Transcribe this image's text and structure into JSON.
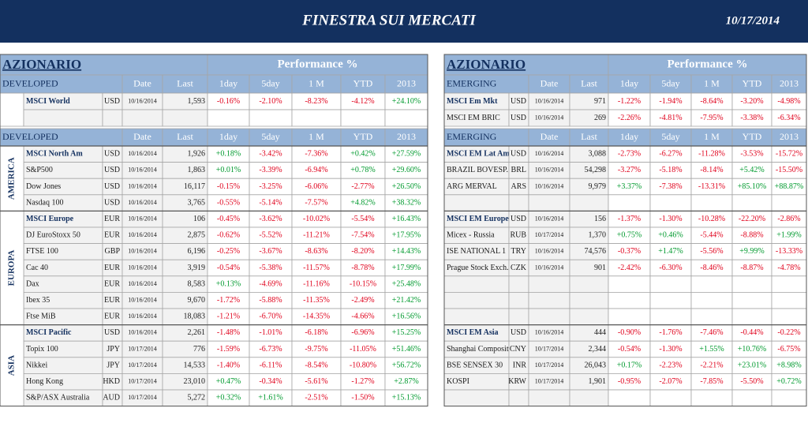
{
  "header": {
    "title": "FINESTRA SUI MERCATI",
    "date": "10/17/2014"
  },
  "left": {
    "title": "AZIONARIO",
    "perf": "Performance %",
    "top_header": [
      "DEVELOPED",
      "Date",
      "Last",
      "1day",
      "5day",
      "1 M",
      "YTD",
      "2013"
    ],
    "top_rows": [
      [
        "MSCI World",
        "USD",
        "10/16/2014",
        "1,593",
        "-0.16%",
        "-2.10%",
        "-8.23%",
        "-4.12%",
        "+24.10%"
      ]
    ],
    "section_header": [
      "DEVELOPED",
      "Date",
      "Last",
      "1day",
      "5day",
      "1 M",
      "YTD",
      "2013"
    ],
    "groups": [
      {
        "name": "AMERICA",
        "rows": [
          [
            "MSCI North Am",
            "USD",
            "10/16/2014",
            "1,926",
            "+0.18%",
            "-3.42%",
            "-7.36%",
            "+0.42%",
            "+27.59%"
          ],
          [
            "S&P500",
            "USD",
            "10/16/2014",
            "1,863",
            "+0.01%",
            "-3.39%",
            "-6.94%",
            "+0.78%",
            "+29.60%"
          ],
          [
            "Dow Jones",
            "USD",
            "10/16/2014",
            "16,117",
            "-0.15%",
            "-3.25%",
            "-6.06%",
            "-2.77%",
            "+26.50%"
          ],
          [
            "Nasdaq 100",
            "USD",
            "10/16/2014",
            "3,765",
            "-0.55%",
            "-5.14%",
            "-7.57%",
            "+4.82%",
            "+38.32%"
          ]
        ]
      },
      {
        "name": "EUROPA",
        "rows": [
          [
            "MSCI Europe",
            "EUR",
            "10/16/2014",
            "106",
            "-0.45%",
            "-3.62%",
            "-10.02%",
            "-5.54%",
            "+16.43%"
          ],
          [
            "DJ EuroStoxx 50",
            "EUR",
            "10/16/2014",
            "2,875",
            "-0.62%",
            "-5.52%",
            "-11.21%",
            "-7.54%",
            "+17.95%"
          ],
          [
            "FTSE 100",
            "GBP",
            "10/16/2014",
            "6,196",
            "-0.25%",
            "-3.67%",
            "-8.63%",
            "-8.20%",
            "+14.43%"
          ],
          [
            "Cac 40",
            "EUR",
            "10/16/2014",
            "3,919",
            "-0.54%",
            "-5.38%",
            "-11.57%",
            "-8.78%",
            "+17.99%"
          ],
          [
            "Dax",
            "EUR",
            "10/16/2014",
            "8,583",
            "+0.13%",
            "-4.69%",
            "-11.16%",
            "-10.15%",
            "+25.48%"
          ],
          [
            "Ibex 35",
            "EUR",
            "10/16/2014",
            "9,670",
            "-1.72%",
            "-5.88%",
            "-11.35%",
            "-2.49%",
            "+21.42%"
          ],
          [
            "Ftse MiB",
            "EUR",
            "10/16/2014",
            "18,083",
            "-1.21%",
            "-6.70%",
            "-14.35%",
            "-4.66%",
            "+16.56%"
          ]
        ]
      },
      {
        "name": "ASIA",
        "rows": [
          [
            "MSCI Pacific",
            "USD",
            "10/16/2014",
            "2,261",
            "-1.48%",
            "-1.01%",
            "-6.18%",
            "-6.96%",
            "+15.25%"
          ],
          [
            "Topix 100",
            "JPY",
            "10/17/2014",
            "776",
            "-1.59%",
            "-6.73%",
            "-9.75%",
            "-11.05%",
            "+51.46%"
          ],
          [
            "Nikkei",
            "JPY",
            "10/17/2014",
            "14,533",
            "-1.40%",
            "-6.11%",
            "-8.54%",
            "-10.80%",
            "+56.72%"
          ],
          [
            "Hong Kong",
            "HKD",
            "10/17/2014",
            "23,010",
            "+0.47%",
            "-0.34%",
            "-5.61%",
            "-1.27%",
            "+2.87%"
          ],
          [
            "S&P/ASX Australia",
            "AUD",
            "10/17/2014",
            "5,272",
            "+0.32%",
            "+1.61%",
            "-2.51%",
            "-1.50%",
            "+15.13%"
          ]
        ]
      }
    ]
  },
  "right": {
    "title": "AZIONARIO",
    "perf": "Performance %",
    "top_header": [
      "EMERGING",
      "Date",
      "Last",
      "1day",
      "5day",
      "1 M",
      "YTD",
      "2013"
    ],
    "top_rows": [
      [
        "MSCI Em Mkt",
        "USD",
        "10/16/2014",
        "971",
        "-1.22%",
        "-1.94%",
        "-8.64%",
        "-3.20%",
        "-4.98%"
      ],
      [
        "MSCI EM BRIC",
        "USD",
        "10/16/2014",
        "269",
        "-2.26%",
        "-4.81%",
        "-7.95%",
        "-3.38%",
        "-6.34%"
      ]
    ],
    "section_header": [
      "EMERGING",
      "Date",
      "Last",
      "1day",
      "5day",
      "1 M",
      "YTD",
      "2013"
    ],
    "groups": [
      {
        "rows": [
          [
            "MSCI EM Lat Am",
            "USD",
            "10/16/2014",
            "3,088",
            "-2.73%",
            "-6.27%",
            "-11.28%",
            "-3.53%",
            "-15.72%"
          ],
          [
            "BRAZIL BOVESP.",
            "BRL",
            "10/16/2014",
            "54,298",
            "-3.27%",
            "-5.18%",
            "-8.14%",
            "+5.42%",
            "-15.50%"
          ],
          [
            "ARG MERVAL",
            "ARS",
            "10/16/2014",
            "9,979",
            "+3.37%",
            "-7.38%",
            "-13.31%",
            "+85.10%",
            "+88.87%"
          ]
        ]
      },
      {
        "rows": [
          [
            "MSCI EM Europe",
            "USD",
            "10/16/2014",
            "156",
            "-1.37%",
            "-1.30%",
            "-10.28%",
            "-22.20%",
            "-2.86%"
          ],
          [
            "Micex - Russia",
            "RUB",
            "10/17/2014",
            "1,370",
            "+0.75%",
            "+0.46%",
            "-5.44%",
            "-8.88%",
            "+1.99%"
          ],
          [
            "ISE NATIONAL 1",
            "TRY",
            "10/16/2014",
            "74,576",
            "-0.37%",
            "+1.47%",
            "-5.56%",
            "+9.99%",
            "-13.33%"
          ],
          [
            "Prague Stock Exch.",
            "CZK",
            "10/16/2014",
            "901",
            "-2.42%",
            "-6.30%",
            "-8.46%",
            "-8.87%",
            "-4.78%"
          ]
        ]
      },
      {
        "rows": [
          [
            "MSCI EM Asia",
            "USD",
            "10/16/2014",
            "444",
            "-0.90%",
            "-1.76%",
            "-7.46%",
            "-0.44%",
            "-0.22%"
          ],
          [
            "Shanghai Composite",
            "CNY",
            "10/17/2014",
            "2,344",
            "-0.54%",
            "-1.30%",
            "+1.55%",
            "+10.76%",
            "-6.75%"
          ],
          [
            "BSE SENSEX 30",
            "INR",
            "10/17/2014",
            "26,043",
            "+0.17%",
            "-2.23%",
            "-2.21%",
            "+23.01%",
            "+8.98%"
          ],
          [
            "KOSPI",
            "KRW",
            "10/17/2014",
            "1,901",
            "-0.95%",
            "-2.07%",
            "-7.85%",
            "-5.50%",
            "+0.72%"
          ]
        ]
      }
    ]
  }
}
